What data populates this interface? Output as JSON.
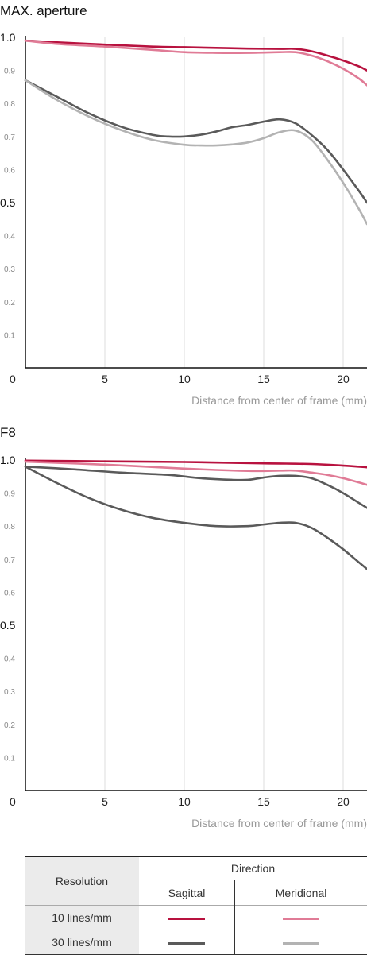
{
  "chart_data": [
    {
      "type": "line",
      "title": "MAX. aperture",
      "xlabel": "Distance from center of frame (mm)",
      "xlim": [
        0,
        21.5
      ],
      "ylim": [
        0,
        1.0
      ],
      "x_ticks": [
        "5",
        "10",
        "15",
        "20"
      ],
      "y_ticks": [
        "1.0",
        "0.9",
        "0.8",
        "0.7",
        "0.6",
        "0.5",
        "0.4",
        "0.3",
        "0.2",
        "0.1"
      ],
      "origin_label": "0",
      "grid": "vertical",
      "series": [
        {
          "color": "#b8123f",
          "x": [
            0,
            2,
            5,
            8,
            10,
            12,
            14,
            16,
            17,
            18,
            19,
            20,
            21,
            21.5
          ],
          "y": [
            0.99,
            0.985,
            0.978,
            0.972,
            0.97,
            0.968,
            0.966,
            0.965,
            0.965,
            0.958,
            0.945,
            0.93,
            0.912,
            0.9
          ]
        },
        {
          "color": "#e07b96",
          "x": [
            0,
            2,
            5,
            8,
            10,
            12,
            14,
            16,
            17,
            18,
            19,
            20,
            21,
            21.5
          ],
          "y": [
            0.99,
            0.98,
            0.972,
            0.962,
            0.955,
            0.953,
            0.953,
            0.955,
            0.955,
            0.945,
            0.928,
            0.905,
            0.875,
            0.855
          ]
        },
        {
          "color": "#5a5a5a",
          "x": [
            0,
            2,
            4,
            6,
            8,
            9,
            10,
            11,
            12,
            13,
            14,
            15,
            16,
            17,
            18,
            19,
            20,
            21,
            21.5
          ],
          "y": [
            0.87,
            0.82,
            0.77,
            0.73,
            0.705,
            0.7,
            0.7,
            0.705,
            0.715,
            0.728,
            0.735,
            0.745,
            0.752,
            0.74,
            0.705,
            0.66,
            0.6,
            0.535,
            0.5
          ]
        },
        {
          "color": "#b3b3b3",
          "x": [
            0,
            2,
            4,
            6,
            8,
            10,
            11,
            12,
            13,
            14,
            15,
            16,
            17,
            18,
            19,
            20,
            21,
            21.5
          ],
          "y": [
            0.87,
            0.81,
            0.76,
            0.72,
            0.69,
            0.675,
            0.673,
            0.673,
            0.676,
            0.682,
            0.695,
            0.713,
            0.718,
            0.69,
            0.63,
            0.56,
            0.48,
            0.435
          ]
        }
      ]
    },
    {
      "type": "line",
      "title": "F8",
      "xlabel": "Distance from center of frame (mm)",
      "xlim": [
        0,
        21.5
      ],
      "ylim": [
        0,
        1.0
      ],
      "x_ticks": [
        "5",
        "10",
        "15",
        "20"
      ],
      "y_ticks": [
        "1.0",
        "0.9",
        "0.8",
        "0.7",
        "0.6",
        "0.5",
        "0.4",
        "0.3",
        "0.2",
        "0.1"
      ],
      "origin_label": "0",
      "grid": "vertical",
      "series": [
        {
          "color": "#b8123f",
          "x": [
            0,
            5,
            10,
            15,
            18,
            20,
            21.5
          ],
          "y": [
            0.998,
            0.996,
            0.994,
            0.99,
            0.988,
            0.983,
            0.978
          ]
        },
        {
          "color": "#e07b96",
          "x": [
            0,
            5,
            10,
            14,
            16,
            17,
            18,
            19,
            20,
            21,
            21.5
          ],
          "y": [
            0.995,
            0.986,
            0.974,
            0.967,
            0.968,
            0.968,
            0.962,
            0.955,
            0.945,
            0.932,
            0.925
          ]
        },
        {
          "color": "#5a5a5a",
          "x": [
            0,
            3,
            6,
            9,
            11,
            13,
            14,
            15,
            16,
            17,
            18,
            19,
            20,
            21,
            21.5
          ],
          "y": [
            0.98,
            0.972,
            0.962,
            0.955,
            0.945,
            0.94,
            0.94,
            0.947,
            0.952,
            0.952,
            0.945,
            0.925,
            0.9,
            0.87,
            0.855
          ]
        },
        {
          "color": "#5a5a5a",
          "x": [
            0,
            2,
            4,
            6,
            8,
            10,
            12,
            14,
            15,
            16,
            17,
            18,
            19,
            20,
            21,
            21.5
          ],
          "y": [
            0.98,
            0.93,
            0.885,
            0.85,
            0.825,
            0.81,
            0.8,
            0.8,
            0.805,
            0.81,
            0.81,
            0.795,
            0.765,
            0.73,
            0.69,
            0.67
          ]
        }
      ]
    }
  ],
  "legend": {
    "resolution_header": "Resolution",
    "direction_header": "Direction",
    "sagittal_header": "Sagittal",
    "meridional_header": "Meridional",
    "rows": [
      {
        "label": "10 lines/mm",
        "sagittal_color": "#b8123f",
        "meridional_color": "#e07b96"
      },
      {
        "label": "30 lines/mm",
        "sagittal_color": "#5a5a5a",
        "meridional_color": "#b3b3b3"
      }
    ]
  }
}
